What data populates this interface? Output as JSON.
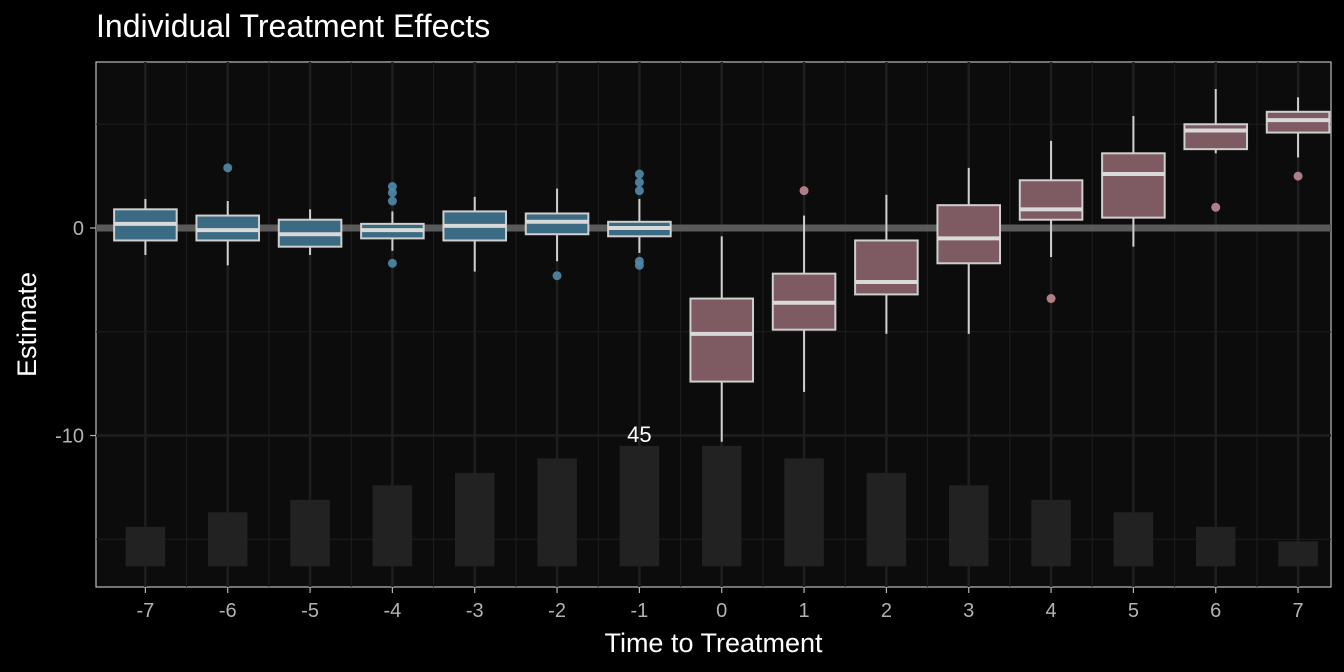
{
  "chart_data": {
    "type": "boxplot",
    "title": "Individual Treatment Effects",
    "xlabel": "Time to Treatment",
    "ylabel": "Estimate",
    "xlim": [
      -7.6,
      7.4
    ],
    "ylim": [
      -17.3,
      8.0
    ],
    "x_ticks": [
      -7,
      -6,
      -5,
      -4,
      -3,
      -2,
      -1,
      0,
      1,
      2,
      3,
      4,
      5,
      6,
      7
    ],
    "x_tick_labels": [
      "-7",
      "-6",
      "-5",
      "-4",
      "-3",
      "-2",
      "-1",
      "0",
      "1",
      "2",
      "3",
      "4",
      "5",
      "6",
      "7"
    ],
    "y_ticks": [
      0,
      -10
    ],
    "y_tick_labels": [
      "0",
      "-10"
    ],
    "grid": true,
    "reference_line_y": 0,
    "colors": {
      "background": "#000000",
      "panel_background": "#0c0c0c",
      "panel_border": "#bdbdbd",
      "grid": "#1f1f1f",
      "pre_fill": "#3b6b82",
      "pre_outlier": "#4f8ba8",
      "post_fill": "#7e5a62",
      "post_outlier": "#c08a94",
      "box_stroke": "#cfcfcf",
      "median": "#d9d9d9",
      "ref_line": "#5a5a5a",
      "count_bar": "#222222",
      "text": "#ffffff",
      "tick_text": "#b3b3b3"
    },
    "series": [
      {
        "group": "pre",
        "values": [
          {
            "x": -7,
            "whisker_low": -1.3,
            "q1": -0.6,
            "median": 0.2,
            "q3": 0.9,
            "whisker_high": 1.4,
            "outliers": []
          },
          {
            "x": -6,
            "whisker_low": -1.8,
            "q1": -0.6,
            "median": -0.1,
            "q3": 0.6,
            "whisker_high": 1.3,
            "outliers": [
              2.9
            ]
          },
          {
            "x": -5,
            "whisker_low": -1.3,
            "q1": -0.9,
            "median": -0.3,
            "q3": 0.4,
            "whisker_high": 0.9,
            "outliers": []
          },
          {
            "x": -4,
            "whisker_low": -1.1,
            "q1": -0.5,
            "median": -0.1,
            "q3": 0.2,
            "whisker_high": 0.8,
            "outliers": [
              -1.7,
              1.3,
              1.7,
              2.0
            ]
          },
          {
            "x": -3,
            "whisker_low": -2.1,
            "q1": -0.6,
            "median": 0.1,
            "q3": 0.8,
            "whisker_high": 1.5,
            "outliers": []
          },
          {
            "x": -2,
            "whisker_low": -1.6,
            "q1": -0.3,
            "median": 0.3,
            "q3": 0.7,
            "whisker_high": 1.9,
            "outliers": [
              -2.3
            ]
          },
          {
            "x": -1,
            "whisker_low": -1.2,
            "q1": -0.4,
            "median": 0.0,
            "q3": 0.3,
            "whisker_high": 1.4,
            "outliers": [
              -1.8,
              -1.6,
              1.8,
              2.2,
              2.6
            ]
          }
        ]
      },
      {
        "group": "post",
        "values": [
          {
            "x": 0,
            "whisker_low": -10.3,
            "q1": -7.4,
            "median": -5.1,
            "q3": -3.4,
            "whisker_high": -0.4,
            "outliers": []
          },
          {
            "x": 1,
            "whisker_low": -7.9,
            "q1": -4.9,
            "median": -3.6,
            "q3": -2.2,
            "whisker_high": 0.6,
            "outliers": [
              1.8
            ]
          },
          {
            "x": 2,
            "whisker_low": -5.1,
            "q1": -3.2,
            "median": -2.6,
            "q3": -0.6,
            "whisker_high": 1.6,
            "outliers": []
          },
          {
            "x": 3,
            "whisker_low": -5.1,
            "q1": -1.7,
            "median": -0.5,
            "q3": 1.1,
            "whisker_high": 2.9,
            "outliers": []
          },
          {
            "x": 4,
            "whisker_low": -1.4,
            "q1": 0.4,
            "median": 0.9,
            "q3": 2.3,
            "whisker_high": 4.2,
            "outliers": [
              -3.4
            ]
          },
          {
            "x": 5,
            "whisker_low": -0.9,
            "q1": 0.5,
            "median": 2.6,
            "q3": 3.6,
            "whisker_high": 5.4,
            "outliers": []
          },
          {
            "x": 6,
            "whisker_low": 3.6,
            "q1": 3.8,
            "median": 4.7,
            "q3": 5.0,
            "whisker_high": 6.7,
            "outliers": [
              1.0
            ]
          },
          {
            "x": 7,
            "whisker_low": 3.4,
            "q1": 4.6,
            "median": 5.2,
            "q3": 5.6,
            "whisker_high": 6.3,
            "outliers": [
              2.5
            ]
          }
        ]
      }
    ],
    "count_bars": {
      "bar_base": -16.3,
      "bar_top": [
        -14.4,
        -13.7,
        -13.1,
        -12.4,
        -11.8,
        -11.1,
        -10.5,
        -10.5,
        -11.1,
        -11.8,
        -12.4,
        -13.1,
        -13.7,
        -14.4,
        -15.1
      ],
      "max_label": "45",
      "max_label_x": -1
    }
  }
}
